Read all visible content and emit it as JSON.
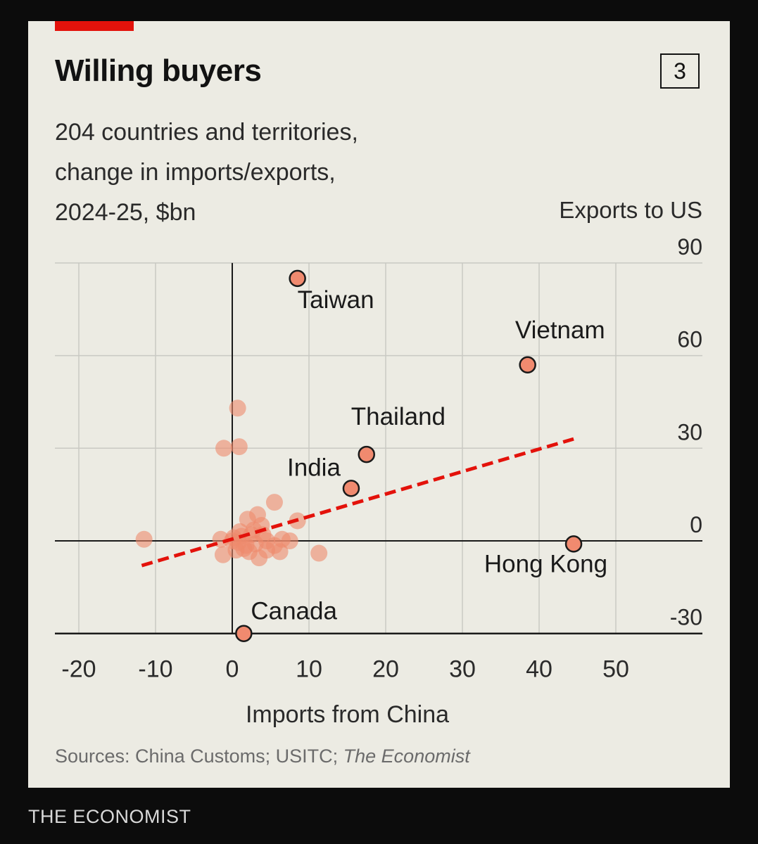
{
  "header": {
    "title": "Willing buyers",
    "chart_number": "3"
  },
  "subtitle_lines": [
    "204 countries and territories,",
    "change in imports/exports,",
    "2024-25, $bn"
  ],
  "source": {
    "prefix": "Sources: China Customs; USITC; ",
    "italic": "The Economist"
  },
  "footer": {
    "brand": "THE ECONOMIST"
  },
  "colors": {
    "background": "#ecebe3",
    "accent": "#e3120b",
    "labeled_point": "#f08a6f",
    "cluster_point": "#ef8a6c",
    "trend_line": "#e3120b",
    "grid": "#c9c9c3"
  },
  "chart_data": {
    "type": "scatter",
    "xlabel": "Imports from China",
    "ylabel": "Exports to US",
    "xlim": [
      -20,
      60
    ],
    "ylim": [
      -30,
      90
    ],
    "x_ticks": [
      -20,
      -10,
      0,
      10,
      20,
      30,
      40,
      50
    ],
    "y_ticks": [
      -30,
      0,
      30,
      60,
      90
    ],
    "grid": true,
    "labeled_points": [
      {
        "name": "Taiwan",
        "x": 8.5,
        "y": 85
      },
      {
        "name": "Vietnam",
        "x": 38.5,
        "y": 57
      },
      {
        "name": "Thailand",
        "x": 17.5,
        "y": 28
      },
      {
        "name": "India",
        "x": 15.5,
        "y": 17
      },
      {
        "name": "Hong Kong",
        "x": 44.5,
        "y": -1
      },
      {
        "name": "Canada",
        "x": 1.5,
        "y": -30
      }
    ],
    "other_points": [
      {
        "x": 0.7,
        "y": 43
      },
      {
        "x": -1.1,
        "y": 30
      },
      {
        "x": 0.9,
        "y": 30.5
      },
      {
        "x": -11.5,
        "y": 0.5
      },
      {
        "x": 5.5,
        "y": 12.5
      },
      {
        "x": 8.5,
        "y": 6.5
      },
      {
        "x": 11.3,
        "y": -4
      },
      {
        "x": 3.3,
        "y": 8.5
      },
      {
        "x": 2,
        "y": 7
      },
      {
        "x": 3.8,
        "y": 5
      },
      {
        "x": 1,
        "y": 3
      },
      {
        "x": 2.5,
        "y": 2
      },
      {
        "x": 0.2,
        "y": 1
      },
      {
        "x": -1.5,
        "y": 0.5
      },
      {
        "x": 0.8,
        "y": -0.5
      },
      {
        "x": 1.8,
        "y": -1.5
      },
      {
        "x": 3,
        "y": -1
      },
      {
        "x": 4.5,
        "y": 0
      },
      {
        "x": 5.5,
        "y": -1.5
      },
      {
        "x": 6.5,
        "y": 0.5
      },
      {
        "x": 7.5,
        "y": 0
      },
      {
        "x": -1.2,
        "y": -4.5
      },
      {
        "x": 0.5,
        "y": -3
      },
      {
        "x": 1.5,
        "y": -2.5
      },
      {
        "x": 2.2,
        "y": -3.5
      },
      {
        "x": 3.5,
        "y": -5.5
      },
      {
        "x": 4.5,
        "y": -3
      },
      {
        "x": 6.2,
        "y": -3.5
      },
      {
        "x": 2.8,
        "y": 3.5
      },
      {
        "x": 0,
        "y": 0
      },
      {
        "x": 1.2,
        "y": 1.5
      },
      {
        "x": 4,
        "y": 2
      }
    ],
    "trend_line": {
      "x": [
        -11.8,
        44.5
      ],
      "y": [
        -8,
        33
      ]
    }
  }
}
